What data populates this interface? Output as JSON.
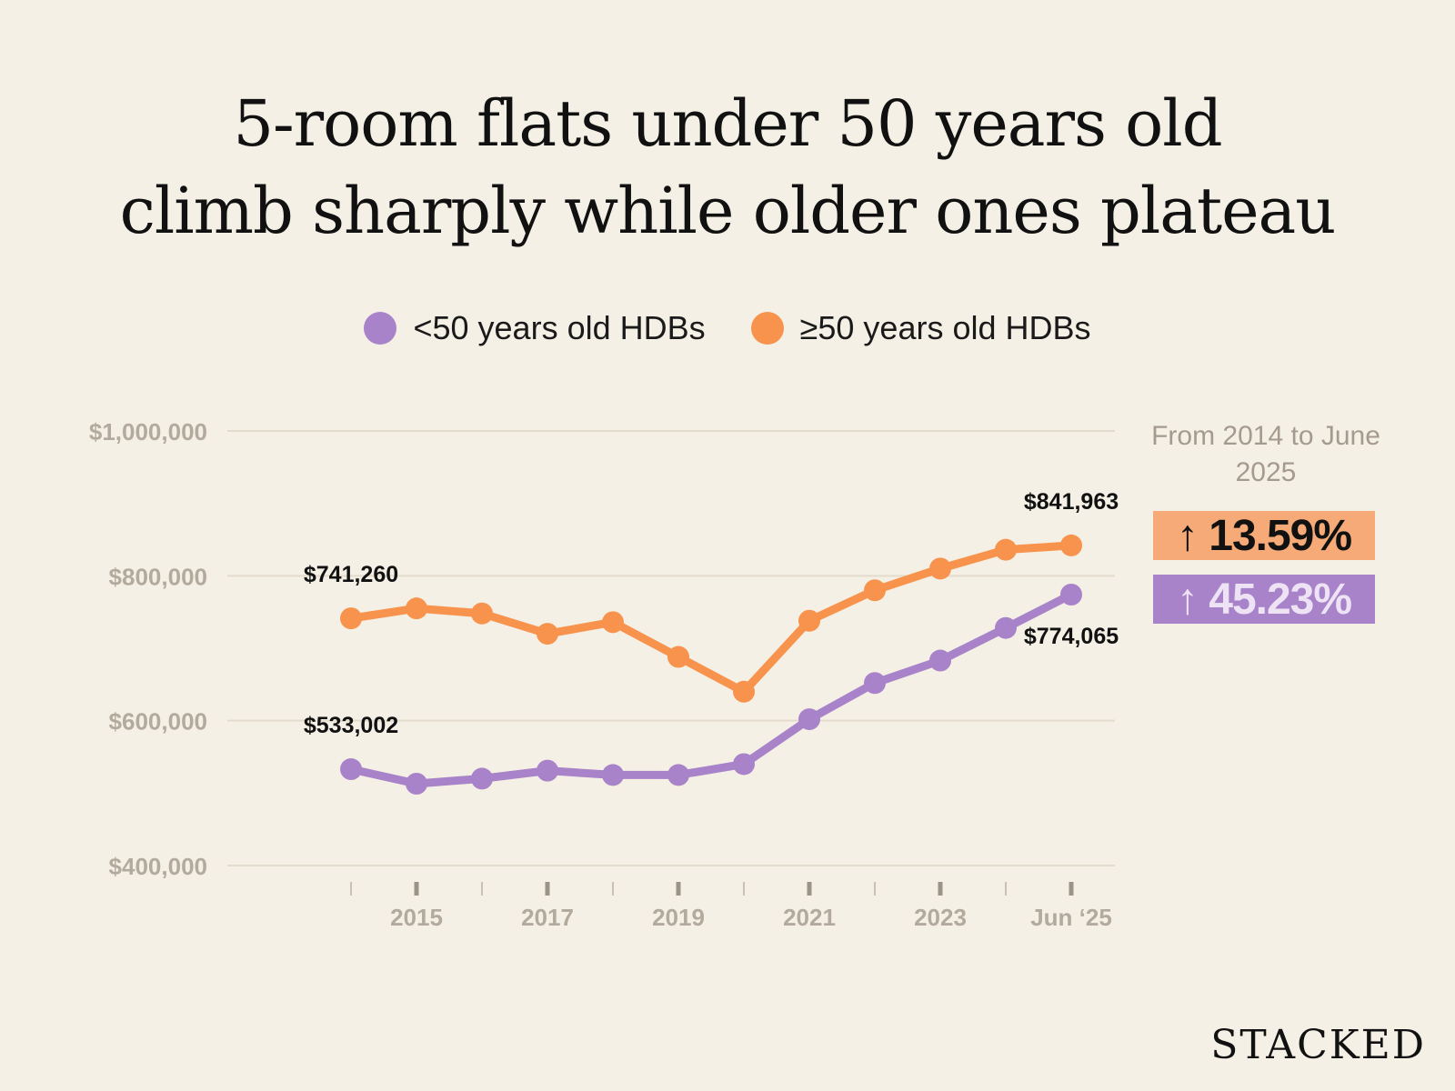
{
  "title_lines": [
    "5-room flats under 50 years old",
    "climb sharply while older ones plateau"
  ],
  "legend": [
    {
      "label": "<50 years old HDBs",
      "color": "#a883c9"
    },
    {
      "label": "≥50 years old HDBs",
      "color": "#f7934d"
    }
  ],
  "side_note": "From 2014 to June 2025",
  "badges": {
    "older": {
      "icon": "up-arrow-icon",
      "text": "↑ 13.59%"
    },
    "younger": {
      "icon": "up-arrow-icon",
      "text": "↑ 45.23%"
    }
  },
  "brand": "STACKED",
  "chart_data": {
    "type": "line",
    "title": "5-room flats under 50 years old climb sharply while older ones plateau",
    "xlabel": "",
    "ylabel": "",
    "ylim": [
      400000,
      1000000
    ],
    "yticks": [
      400000,
      600000,
      800000,
      1000000
    ],
    "ytick_labels": [
      "$400,000",
      "$600,000",
      "$800,000",
      "$1,000,000"
    ],
    "categories": [
      "2014",
      "2015",
      "2016",
      "2017",
      "2018",
      "2019",
      "2020",
      "2021",
      "2022",
      "2023",
      "2024",
      "Jun '25"
    ],
    "xtick_labels": [
      "",
      "2015",
      "",
      "2017",
      "",
      "2019",
      "",
      "2021",
      "",
      "2023",
      "",
      "Jun ‘25"
    ],
    "grid": true,
    "legend_position": "top-center",
    "series": [
      {
        "name": "≥50 years old HDBs",
        "color": "#f7934d",
        "values": [
          741260,
          755000,
          748000,
          720000,
          736000,
          688000,
          640000,
          738000,
          780000,
          810000,
          836000,
          841963
        ],
        "labels": [
          {
            "index": 0,
            "text": "$741,260",
            "pos": "above"
          },
          {
            "index": 11,
            "text": "$841,963",
            "pos": "above"
          }
        ]
      },
      {
        "name": "<50 years old HDBs",
        "color": "#a883c9",
        "values": [
          533002,
          513000,
          520000,
          531000,
          525000,
          525000,
          540000,
          602000,
          652000,
          683000,
          728000,
          774065
        ],
        "labels": [
          {
            "index": 0,
            "text": "$533,002",
            "pos": "above"
          },
          {
            "index": 11,
            "text": "$774,065",
            "pos": "below"
          }
        ]
      }
    ]
  }
}
